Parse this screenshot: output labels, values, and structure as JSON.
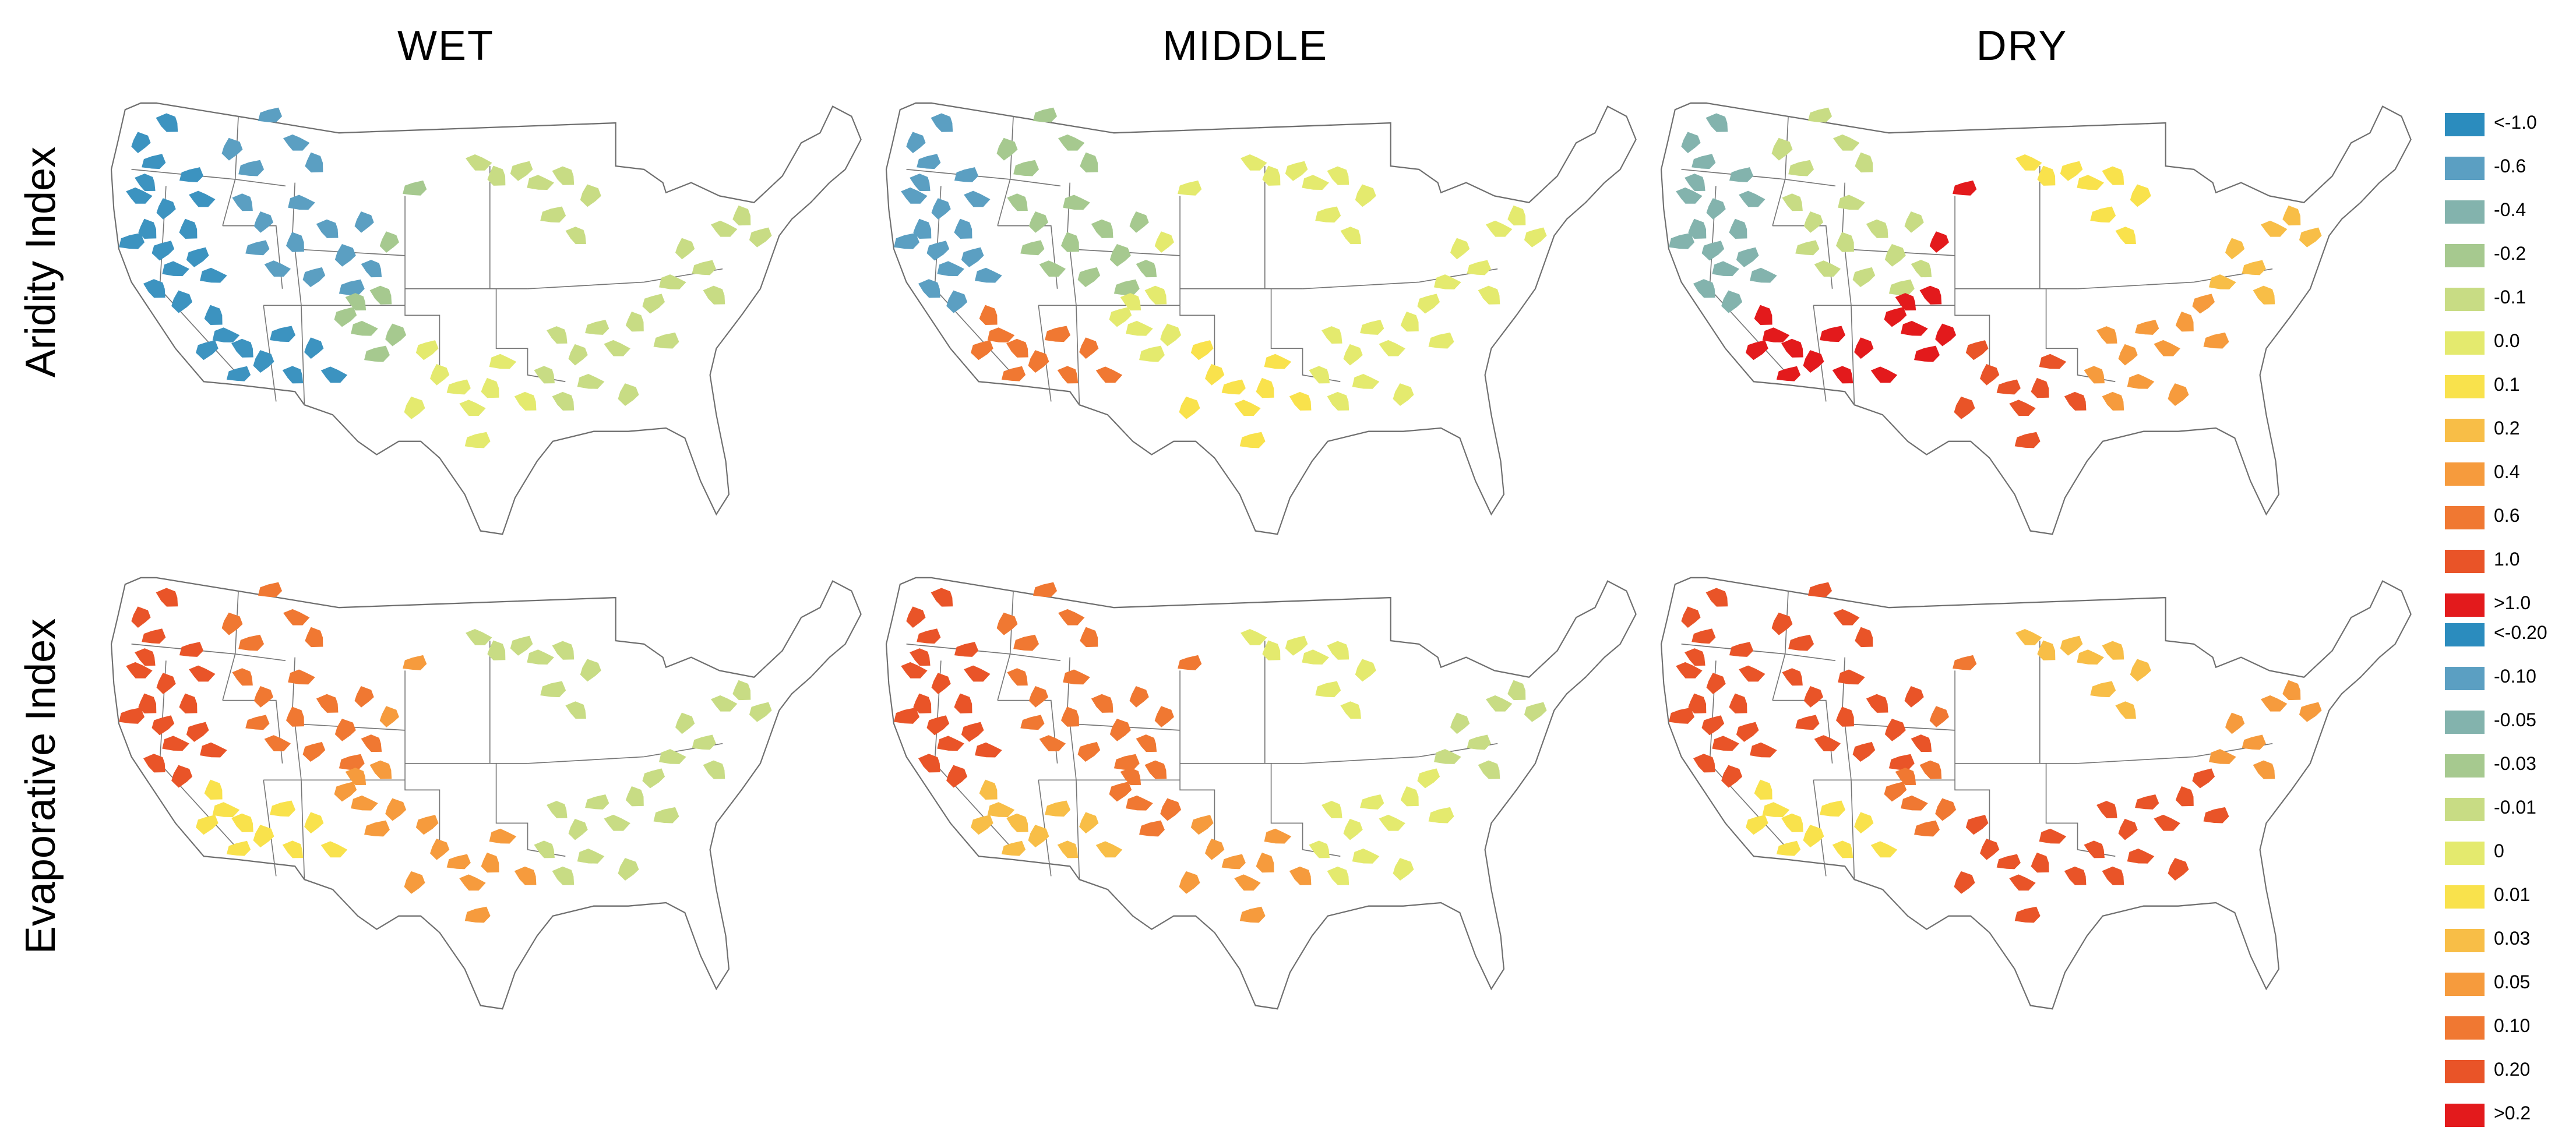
{
  "columns": [
    "WET",
    "MIDDLE",
    "DRY"
  ],
  "rows": [
    "Aridity Index",
    "Evaporative Index"
  ],
  "legends": [
    {
      "items": [
        {
          "label": "<-1.0",
          "color": "#2b8cbe"
        },
        {
          "label": "-0.6",
          "color": "#5b9fc2"
        },
        {
          "label": "-0.4",
          "color": "#83b3ad"
        },
        {
          "label": "-0.2",
          "color": "#a6c98f"
        },
        {
          "label": "-0.1",
          "color": "#c8dc84"
        },
        {
          "label": "0.0",
          "color": "#e4ea6e"
        },
        {
          "label": "0.1",
          "color": "#f9e24c"
        },
        {
          "label": "0.2",
          "color": "#f8be47"
        },
        {
          "label": "0.4",
          "color": "#f69b3d"
        },
        {
          "label": "0.6",
          "color": "#f07832"
        },
        {
          "label": "1.0",
          "color": "#e95428"
        },
        {
          "label": ">1.0",
          "color": "#e31a1c"
        }
      ]
    },
    {
      "items": [
        {
          "label": "<-0.20",
          "color": "#2b8cbe"
        },
        {
          "label": "-0.10",
          "color": "#5b9fc2"
        },
        {
          "label": "-0.05",
          "color": "#83b3ad"
        },
        {
          "label": "-0.03",
          "color": "#a6c98f"
        },
        {
          "label": "-0.01",
          "color": "#c8dc84"
        },
        {
          "label": "0",
          "color": "#e4ea6e"
        },
        {
          "label": "0.01",
          "color": "#f9e24c"
        },
        {
          "label": "0.03",
          "color": "#f8be47"
        },
        {
          "label": "0.05",
          "color": "#f69b3d"
        },
        {
          "label": "0.10",
          "color": "#f07832"
        },
        {
          "label": "0.20",
          "color": "#e95428"
        },
        {
          "label": ">0.2",
          "color": "#e31a1c"
        }
      ]
    }
  ],
  "region_colors": {
    "WET|Aridity Index": {
      "west": "#3c93c0",
      "mountain": "#5b9fc2",
      "southwest": "#3c93c0",
      "plains": "#a6c98f",
      "midwest": "#c8dc84",
      "south": "#e4ea6e",
      "southeast": "#c8dc84",
      "northeast": "#c8dc84"
    },
    "MIDDLE|Aridity Index": {
      "west": "#5b9fc2",
      "mountain": "#a6c98f",
      "southwest": "#f07832",
      "plains": "#e4ea6e",
      "midwest": "#e4ea6e",
      "south": "#f9e24c",
      "southeast": "#e4ea6e",
      "northeast": "#e4ea6e"
    },
    "DRY|Aridity Index": {
      "west": "#83b3ad",
      "mountain": "#c8dc84",
      "southwest": "#e31a1c",
      "plains": "#e31a1c",
      "midwest": "#f9e24c",
      "south": "#e95428",
      "southeast": "#f69b3d",
      "northeast": "#f8be47"
    },
    "WET|Evaporative Index": {
      "west": "#e95428",
      "mountain": "#f07832",
      "southwest": "#f9e24c",
      "plains": "#f69b3d",
      "midwest": "#c8dc84",
      "south": "#f69b3d",
      "southeast": "#c8dc84",
      "northeast": "#c8dc84"
    },
    "MIDDLE|Evaporative Index": {
      "west": "#e95428",
      "mountain": "#f07832",
      "southwest": "#f8be47",
      "plains": "#f07832",
      "midwest": "#e4ea6e",
      "south": "#f69b3d",
      "southeast": "#e4ea6e",
      "northeast": "#c8dc84"
    },
    "DRY|Evaporative Index": {
      "west": "#e95428",
      "mountain": "#e95428",
      "southwest": "#f9e24c",
      "plains": "#f07832",
      "midwest": "#f8be47",
      "south": "#e95428",
      "southeast": "#e95428",
      "northeast": "#f69b3d"
    }
  }
}
